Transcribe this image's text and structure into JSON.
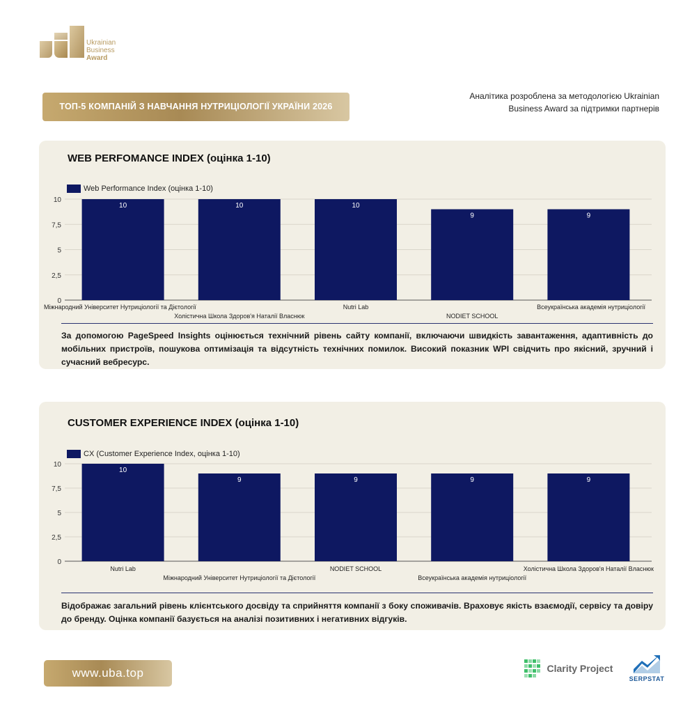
{
  "brand": {
    "logo_lines": [
      "Ukrainian",
      "Business",
      "Award"
    ],
    "title": "ТОП-5 КОМПАНІЙ З НАВЧАННЯ НУТРИЦІОЛОГІЇ УКРАЇНИ 2026",
    "note": "Аналітика розроблена за методологією Ukrainian Business Award за підтримки партнерів",
    "gold": "#b49a65"
  },
  "chart_data": [
    {
      "type": "bar",
      "heading": "WEB PERFOMANCE INDEX (оцінка 1-10)",
      "series": [
        {
          "name": "Web Performance Index (оцінка 1-10)",
          "color": "#0e1861",
          "values": [
            10,
            10,
            10,
            9,
            9
          ]
        }
      ],
      "categories": [
        "Міжнародний Університет Нутриціології та Дієтології",
        "Холістична Школа Здоров'я Наталії Власнюк",
        "Nutri Lab",
        "NODIET SCHOOL",
        "Всеукраїнська академія нутриціології"
      ],
      "ylim": [
        0,
        10
      ],
      "yticks": [
        "0",
        "2,5",
        "5",
        "7,5",
        "10"
      ],
      "data_labels": [
        "10",
        "10",
        "10",
        "9",
        "9"
      ],
      "grid": true,
      "legend": "top-left"
    },
    {
      "type": "bar",
      "heading": "CUSTOMER EXPERIENCE INDEX (оцінка 1-10)",
      "series": [
        {
          "name": "CX (Customer Experience Index, оцінка 1-10)",
          "color": "#0e1861",
          "values": [
            10,
            9,
            9,
            9,
            9
          ]
        }
      ],
      "categories": [
        "Nutri Lab",
        "Міжнародний Університет Нутриціології та Дієтології",
        "NODIET SCHOOL",
        "Всеукраїнська академія нутриціології",
        "Холістична Школа Здоров'я Наталії Власнюк"
      ],
      "ylim": [
        0,
        10
      ],
      "yticks": [
        "0",
        "2,5",
        "5",
        "7,5",
        "10"
      ],
      "data_labels": [
        "10",
        "9",
        "9",
        "9",
        "9"
      ],
      "grid": true,
      "legend": "top-left"
    }
  ],
  "descriptions": [
    "За допомогою PageSpeed Insights оцінюється технічний рівень сайту компанії, включаючи швидкість завантаження, адаптивність до мобільних пристроїв, пошукова оптимізація та відсутність технічних помилок. Високий показник WPI свідчить про якісний, зручний і сучасний вебресурс.",
    "Відображає загальний рівень клієнтського досвіду та сприйняття компанії з боку споживачів. Враховує якість взаємодії, сервісу та довіру до бренду. Оцінка компанії базується на аналізі позитивних і негативних відгуків."
  ],
  "footer": {
    "url": "www.uba.top",
    "partner1": "Clarity Project",
    "partner2": "SERPSTAT"
  }
}
